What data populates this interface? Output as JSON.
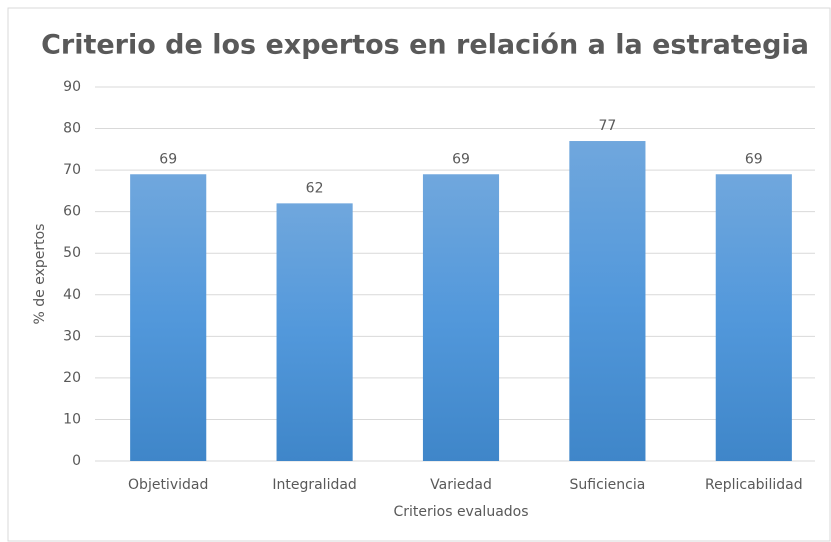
{
  "chart_data": {
    "type": "bar",
    "title": "Criterio de los expertos en relación a la estrategia",
    "categories": [
      "Objetividad",
      "Integralidad",
      "Variedad",
      "Suficiencia",
      "Replicabilidad"
    ],
    "values": [
      69,
      62,
      69,
      77,
      69
    ],
    "color": "#5b9bd5",
    "ylim": [
      0,
      90
    ],
    "yticks": [
      0,
      10,
      20,
      30,
      40,
      50,
      60,
      70,
      80,
      90
    ],
    "grid": true,
    "ylabel": "% de expertos",
    "xlabel": "Criterios evaluados"
  }
}
